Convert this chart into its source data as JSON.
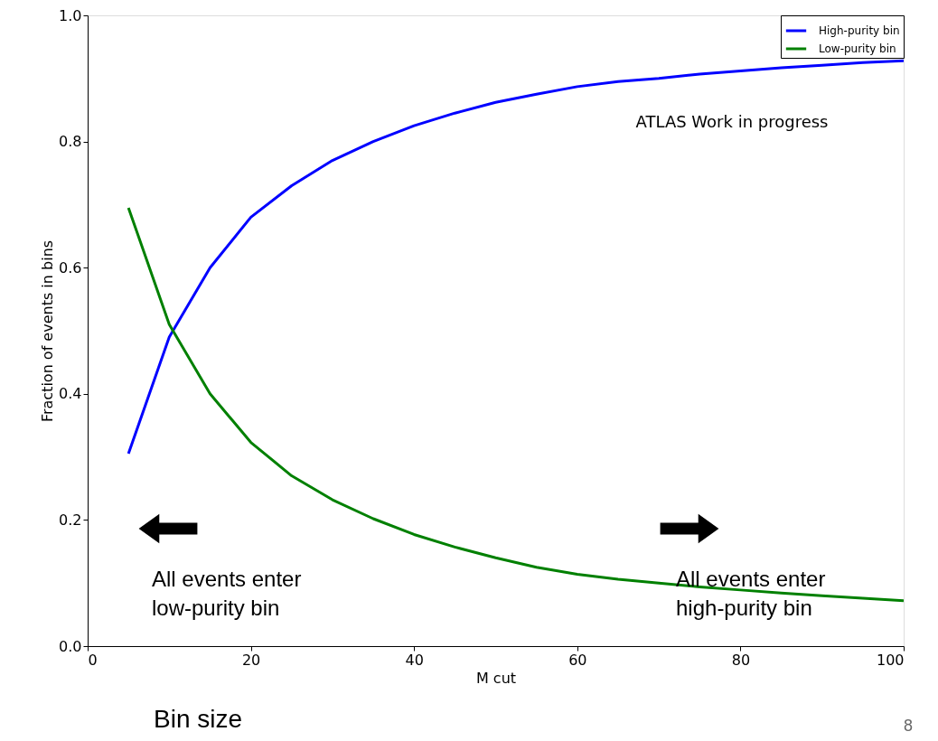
{
  "chart_data": {
    "type": "line",
    "xlabel": "M cut",
    "ylabel": "Fraction of events in bins",
    "x": [
      5,
      10,
      15,
      20,
      25,
      30,
      35,
      40,
      45,
      50,
      55,
      60,
      65,
      70,
      75,
      80,
      85,
      90,
      95,
      100
    ],
    "series": [
      {
        "name": "High-purity bin",
        "color": "#0000ff",
        "values": [
          0.305,
          0.49,
          0.6,
          0.68,
          0.73,
          0.77,
          0.8,
          0.825,
          0.845,
          0.862,
          0.875,
          0.887,
          0.895,
          0.9,
          0.907,
          0.912,
          0.917,
          0.921,
          0.925,
          0.928
        ]
      },
      {
        "name": "Low-purity bin",
        "color": "#008000",
        "values": [
          0.695,
          0.51,
          0.4,
          0.323,
          0.27,
          0.232,
          0.202,
          0.177,
          0.157,
          0.14,
          0.125,
          0.114,
          0.106,
          0.1,
          0.094,
          0.089,
          0.084,
          0.08,
          0.076,
          0.072
        ]
      }
    ],
    "xlim": [
      0,
      100
    ],
    "xticks": [
      0,
      20,
      40,
      60,
      80,
      100
    ],
    "ylim": [
      0,
      1.0
    ],
    "yticks": [
      {
        "value": 0,
        "label": "0.0"
      },
      0.2,
      0.4,
      0.6,
      0.8,
      {
        "value": 1.0,
        "label": "1.0"
      }
    ],
    "annotations": [
      "ATLAS Work in progress",
      "All events enter\nlow-purity bin",
      "All events enter\nhigh-purity bin",
      "Bin size",
      "8"
    ],
    "legend": "top right",
    "grid": false,
    "marker": "none",
    "line_style": "solid"
  }
}
